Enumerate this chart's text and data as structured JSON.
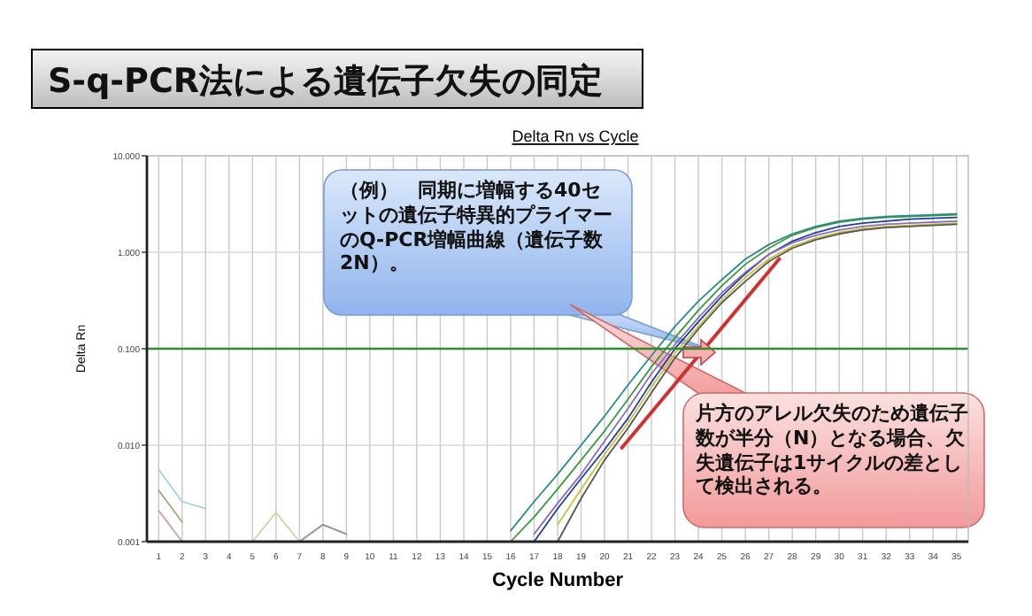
{
  "chart_data": {
    "type": "line",
    "title": "S-q-PCR法による遺伝子欠失の同定",
    "subtitle": "Delta Rn vs Cycle",
    "xlabel": "Cycle Number",
    "ylabel": "Delta Rn",
    "annotations": [
      "（例）　同期に増幅する40セットの遺伝子特異的プライマーのQ-PCR増幅曲線（遺伝子数2N）。",
      "片方のアレル欠失のため遺伝子数が半分（N）となる場合、欠失遺伝子は1サイクルの差として検出される。"
    ],
    "log": true,
    "xlim": [
      0.5,
      35.5
    ],
    "xticks": [
      1,
      2,
      3,
      4,
      5,
      6,
      7,
      8,
      9,
      10,
      11,
      12,
      13,
      14,
      15,
      16,
      17,
      18,
      19,
      20,
      21,
      22,
      23,
      24,
      25,
      26,
      27,
      28,
      29,
      30,
      31,
      32,
      33,
      34,
      35
    ],
    "ylim": [
      0.001,
      10
    ],
    "yticks": [
      {
        "value": 0.001,
        "label": "0.001"
      },
      {
        "value": 0.01,
        "label": "0.010"
      },
      {
        "value": 0.1,
        "label": "0.100"
      },
      {
        "value": 1,
        "label": "1.000"
      },
      {
        "value": 10,
        "label": "10.000"
      }
    ],
    "grid": true,
    "marker": "none",
    "line_style": "solid",
    "ref_lines": [
      {
        "axis": "y",
        "value": 0.1,
        "label": null,
        "color": "#2e8b2e"
      }
    ],
    "series": [
      {
        "color": "#3a9a3a",
        "x": [
          16,
          17,
          18,
          19,
          20,
          21,
          22,
          23,
          24,
          25,
          26,
          27,
          28,
          29,
          30,
          31,
          32,
          33,
          34,
          35
        ],
        "values": [
          0.001,
          0.0018,
          0.0035,
          0.007,
          0.014,
          0.03,
          0.065,
          0.13,
          0.25,
          0.45,
          0.75,
          1.1,
          1.5,
          1.8,
          2.05,
          2.2,
          2.3,
          2.35,
          2.4,
          2.45
        ]
      },
      {
        "color": "#1f3f9f",
        "x": [
          17,
          18,
          19,
          20,
          21,
          22,
          23,
          24,
          25,
          26,
          27,
          28,
          29,
          30,
          31,
          32,
          33,
          34,
          35
        ],
        "values": [
          0.001,
          0.0022,
          0.0045,
          0.009,
          0.019,
          0.045,
          0.1,
          0.19,
          0.35,
          0.6,
          0.95,
          1.3,
          1.6,
          1.85,
          2.0,
          2.1,
          2.2,
          2.25,
          2.3
        ]
      },
      {
        "color": "#8a6fc0",
        "x": [
          17,
          18,
          19,
          20,
          21,
          22,
          23,
          24,
          25,
          26,
          27,
          28,
          29,
          30,
          31,
          32,
          33,
          34,
          35
        ],
        "values": [
          0.0012,
          0.0025,
          0.005,
          0.011,
          0.024,
          0.055,
          0.11,
          0.21,
          0.38,
          0.62,
          0.95,
          1.25,
          1.5,
          1.7,
          1.85,
          1.95,
          2.0,
          2.05,
          2.1
        ]
      },
      {
        "color": "#c9c23a",
        "x": [
          18,
          19,
          20,
          21,
          22,
          23,
          24,
          25,
          26,
          27,
          28,
          29,
          30,
          31,
          32,
          33,
          34,
          35
        ],
        "values": [
          0.0015,
          0.0035,
          0.008,
          0.017,
          0.04,
          0.09,
          0.17,
          0.32,
          0.55,
          0.85,
          1.15,
          1.4,
          1.6,
          1.75,
          1.85,
          1.9,
          1.95,
          2.0
        ]
      },
      {
        "color": "#2a8a8a",
        "x": [
          16,
          17,
          18,
          19,
          20,
          21,
          22,
          23,
          24,
          25,
          26,
          27,
          28,
          29,
          30,
          31,
          32,
          33,
          34,
          35
        ],
        "values": [
          0.0013,
          0.0026,
          0.005,
          0.01,
          0.02,
          0.042,
          0.085,
          0.17,
          0.31,
          0.52,
          0.85,
          1.2,
          1.55,
          1.85,
          2.1,
          2.25,
          2.35,
          2.4,
          2.45,
          2.5
        ]
      },
      {
        "color": "#555555",
        "x": [
          18,
          19,
          20,
          21,
          22,
          23,
          24,
          25,
          26,
          27,
          28,
          29,
          30,
          31,
          32,
          33,
          34,
          35
        ],
        "values": [
          0.001,
          0.0028,
          0.007,
          0.015,
          0.035,
          0.08,
          0.16,
          0.3,
          0.5,
          0.8,
          1.1,
          1.35,
          1.55,
          1.7,
          1.8,
          1.85,
          1.9,
          1.95
        ]
      },
      {
        "color": "#9fd6d6",
        "x": [
          1,
          2,
          3
        ],
        "values": [
          0.0056,
          0.0026,
          0.0022
        ]
      },
      {
        "color": "#b0a070",
        "x": [
          1,
          2
        ],
        "values": [
          0.0034,
          0.0016
        ]
      },
      {
        "color": "#d0a0a0",
        "x": [
          1,
          2
        ],
        "values": [
          0.0021,
          0.001
        ]
      },
      {
        "color": "#c8d8a0",
        "x": [
          5,
          6,
          7
        ],
        "values": [
          0.001,
          0.002,
          0.001
        ]
      },
      {
        "color": "#a08890",
        "x": [
          7,
          8,
          9
        ],
        "values": [
          0.001,
          0.0015,
          0.0012
        ]
      }
    ]
  }
}
